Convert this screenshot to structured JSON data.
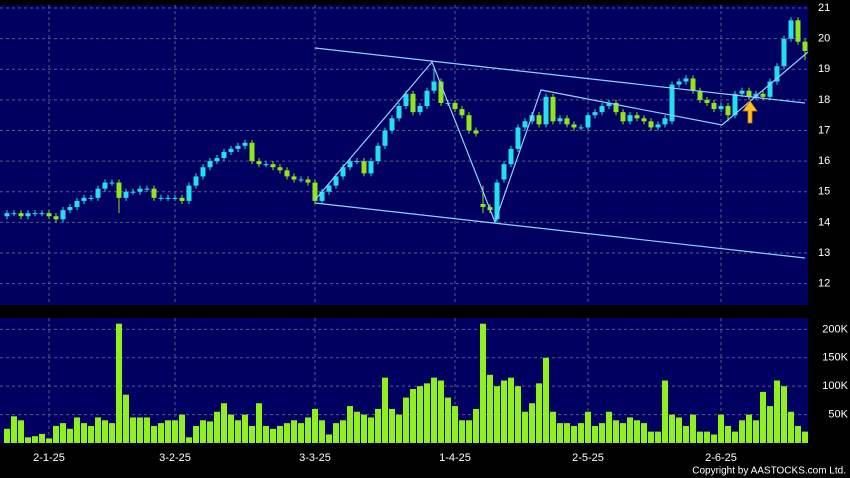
{
  "chart_data": {
    "type": "candlestick",
    "background": "#000060",
    "up_color": "#22e0f0",
    "down_color": "#8ee61e",
    "grid": true,
    "copyright": "Copyright by AASTOCKS.com Ltd.",
    "categories": [
      null,
      null,
      null,
      null,
      null,
      null,
      "2-1-25",
      null,
      null,
      null,
      null,
      null,
      null,
      null,
      null,
      null,
      null,
      null,
      null,
      null,
      null,
      null,
      null,
      null,
      "3-2-25",
      null,
      null,
      null,
      null,
      null,
      null,
      null,
      null,
      null,
      null,
      null,
      null,
      null,
      null,
      null,
      null,
      null,
      null,
      null,
      "3-3-25",
      null,
      null,
      null,
      null,
      null,
      null,
      null,
      null,
      null,
      null,
      null,
      null,
      null,
      null,
      null,
      null,
      null,
      null,
      null,
      "1-4-25",
      null,
      null,
      null,
      null,
      null,
      null,
      null,
      null,
      null,
      null,
      null,
      null,
      null,
      null,
      null,
      null,
      null,
      null,
      "2-5-25",
      null,
      null,
      null,
      null,
      null,
      null,
      null,
      null,
      null,
      null,
      null,
      null,
      null,
      null,
      null,
      null,
      null,
      null,
      "2-6-25",
      null,
      null,
      null,
      null,
      null,
      null,
      null,
      null,
      null,
      null,
      null,
      null
    ],
    "open": [
      14.2,
      14.3,
      14.3,
      14.2,
      14.3,
      14.3,
      14.3,
      14.2,
      14.1,
      14.4,
      14.5,
      14.7,
      14.8,
      14.8,
      15.1,
      15.3,
      15.3,
      14.8,
      15.0,
      15.0,
      15.1,
      15.1,
      14.8,
      14.8,
      14.8,
      14.8,
      14.7,
      15.2,
      15.5,
      15.8,
      16.0,
      16.1,
      16.3,
      16.4,
      16.5,
      16.6,
      16.0,
      15.9,
      15.9,
      15.8,
      15.7,
      15.5,
      15.4,
      15.4,
      15.3,
      14.7,
      15.0,
      15.2,
      15.5,
      15.8,
      16.0,
      16.0,
      15.6,
      16.0,
      16.5,
      17.0,
      17.4,
      17.8,
      18.2,
      17.6,
      17.8,
      18.3,
      18.6,
      17.9,
      17.9,
      17.7,
      17.5,
      17.0,
      14.6,
      14.5,
      14.1,
      15.4,
      15.9,
      16.4,
      17.1,
      17.3,
      17.5,
      17.2,
      18.1,
      17.3,
      17.4,
      17.2,
      17.1,
      17.1,
      17.5,
      17.6,
      17.8,
      17.9,
      17.6,
      17.3,
      17.5,
      17.4,
      17.3,
      17.1,
      17.2,
      17.3,
      18.5,
      18.6,
      18.7,
      18.3,
      18.0,
      17.9,
      17.7,
      17.8,
      17.5,
      18.2,
      18.3,
      18.1,
      18.2,
      18.1,
      18.6,
      19.1,
      20.0,
      20.6,
      19.9
    ],
    "high": [
      14.4,
      14.4,
      14.4,
      14.4,
      14.4,
      14.4,
      14.4,
      14.3,
      14.5,
      14.6,
      14.8,
      14.9,
      14.9,
      15.2,
      15.4,
      15.4,
      15.4,
      15.1,
      15.1,
      15.2,
      15.2,
      15.2,
      14.9,
      14.9,
      14.9,
      14.9,
      15.3,
      15.6,
      15.9,
      16.1,
      16.2,
      16.4,
      16.5,
      16.6,
      16.7,
      16.7,
      16.1,
      16.0,
      16.0,
      15.9,
      15.8,
      15.6,
      15.5,
      15.5,
      15.4,
      15.1,
      15.3,
      15.6,
      15.9,
      16.1,
      16.1,
      16.1,
      16.1,
      16.6,
      17.1,
      17.5,
      17.9,
      18.3,
      18.3,
      17.9,
      18.4,
      19.0,
      18.7,
      18.0,
      18.0,
      17.8,
      17.6,
      17.1,
      15.2,
      14.6,
      15.4,
      16.0,
      16.5,
      17.2,
      17.4,
      17.6,
      17.6,
      18.2,
      18.2,
      17.5,
      17.5,
      17.3,
      17.2,
      17.6,
      17.7,
      17.9,
      18.0,
      18.0,
      17.7,
      17.6,
      17.6,
      17.5,
      17.4,
      17.3,
      17.5,
      18.6,
      18.7,
      18.8,
      18.8,
      18.4,
      18.1,
      18.0,
      17.9,
      17.9,
      18.3,
      18.4,
      18.4,
      18.3,
      18.3,
      18.7,
      19.2,
      20.1,
      20.7,
      20.7,
      20.0
    ],
    "low": [
      14.1,
      14.2,
      14.1,
      14.1,
      14.2,
      14.2,
      14.1,
      14.0,
      14.0,
      14.3,
      14.4,
      14.6,
      14.7,
      14.7,
      15.0,
      15.2,
      14.3,
      14.7,
      14.9,
      14.9,
      15.0,
      14.7,
      14.7,
      14.7,
      14.7,
      14.6,
      14.6,
      15.1,
      15.4,
      15.7,
      15.9,
      16.0,
      16.2,
      16.3,
      16.4,
      15.9,
      15.8,
      15.8,
      15.7,
      15.6,
      15.4,
      15.3,
      15.3,
      15.2,
      14.6,
      14.6,
      14.9,
      15.1,
      15.4,
      15.7,
      15.9,
      15.5,
      15.5,
      15.9,
      16.4,
      16.9,
      17.3,
      17.7,
      17.5,
      17.5,
      17.7,
      18.2,
      17.8,
      17.8,
      17.6,
      17.4,
      16.9,
      16.8,
      14.3,
      14.3,
      14.0,
      15.3,
      15.8,
      16.3,
      17.0,
      17.2,
      17.1,
      17.1,
      17.2,
      17.2,
      17.1,
      17.0,
      17.0,
      17.0,
      17.4,
      17.5,
      17.7,
      17.5,
      17.2,
      17.2,
      17.3,
      17.2,
      17.0,
      17.0,
      17.1,
      17.2,
      18.4,
      18.5,
      18.2,
      17.9,
      17.8,
      17.6,
      17.6,
      17.3,
      17.4,
      18.1,
      18.0,
      18.0,
      18.0,
      18.0,
      18.5,
      19.0,
      19.9,
      19.8,
      19.3
    ],
    "close": [
      14.3,
      14.3,
      14.2,
      14.3,
      14.3,
      14.3,
      14.2,
      14.1,
      14.4,
      14.5,
      14.7,
      14.8,
      14.8,
      15.1,
      15.3,
      15.3,
      14.8,
      15.0,
      15.0,
      15.1,
      15.1,
      14.8,
      14.8,
      14.8,
      14.8,
      14.7,
      15.2,
      15.5,
      15.8,
      16.0,
      16.1,
      16.3,
      16.4,
      16.5,
      16.6,
      16.0,
      15.9,
      15.9,
      15.8,
      15.7,
      15.5,
      15.4,
      15.4,
      15.3,
      14.7,
      15.0,
      15.2,
      15.5,
      15.8,
      16.0,
      16.0,
      15.6,
      16.0,
      16.5,
      17.0,
      17.4,
      17.8,
      18.2,
      17.6,
      17.8,
      18.3,
      18.6,
      17.9,
      17.9,
      17.7,
      17.5,
      17.0,
      16.9,
      14.5,
      14.4,
      15.3,
      15.9,
      16.4,
      17.1,
      17.3,
      17.5,
      17.2,
      18.1,
      17.3,
      17.4,
      17.2,
      17.1,
      17.1,
      17.5,
      17.6,
      17.8,
      17.9,
      17.6,
      17.3,
      17.5,
      17.4,
      17.3,
      17.1,
      17.2,
      17.4,
      18.5,
      18.6,
      18.7,
      18.3,
      18.0,
      17.9,
      17.7,
      17.8,
      17.5,
      18.2,
      18.3,
      18.1,
      18.2,
      18.1,
      18.6,
      19.1,
      20.0,
      20.6,
      19.9,
      19.6
    ],
    "ylim": [
      11.3,
      21.1
    ],
    "yticks": [
      12,
      13,
      14,
      15,
      16,
      17,
      18,
      19,
      20,
      21
    ],
    "volume": {
      "color": "#8ef01e",
      "ylim": [
        0,
        220000
      ],
      "yticks": [
        {
          "value": 50000,
          "label": "50K"
        },
        {
          "value": 100000,
          "label": "100K"
        },
        {
          "value": 150000,
          "label": "150K"
        },
        {
          "value": 200000,
          "label": "200K"
        }
      ],
      "values": [
        25000,
        47000,
        40000,
        10000,
        12000,
        16000,
        8000,
        30000,
        35000,
        25000,
        45000,
        35000,
        30000,
        45000,
        40000,
        35000,
        210000,
        85000,
        45000,
        45000,
        45000,
        30000,
        35000,
        40000,
        40000,
        50000,
        10000,
        30000,
        40000,
        38000,
        55000,
        70000,
        50000,
        40000,
        50000,
        30000,
        70000,
        30000,
        25000,
        30000,
        35000,
        40000,
        35000,
        45000,
        60000,
        40000,
        15000,
        35000,
        40000,
        65000,
        55000,
        50000,
        45000,
        60000,
        115000,
        60000,
        50000,
        80000,
        95000,
        100000,
        105000,
        115000,
        110000,
        80000,
        65000,
        40000,
        40000,
        60000,
        210000,
        120000,
        100000,
        110000,
        115000,
        100000,
        55000,
        70000,
        105000,
        150000,
        55000,
        35000,
        35000,
        30000,
        35000,
        55000,
        30000,
        35000,
        55000,
        40000,
        35000,
        45000,
        40000,
        35000,
        20000,
        20000,
        110000,
        50000,
        45000,
        30000,
        50000,
        20000,
        20000,
        15000,
        50000,
        30000,
        20000,
        40000,
        50000,
        40000,
        90000,
        65000,
        110000,
        100000,
        55000,
        30000,
        20000
      ]
    }
  }
}
